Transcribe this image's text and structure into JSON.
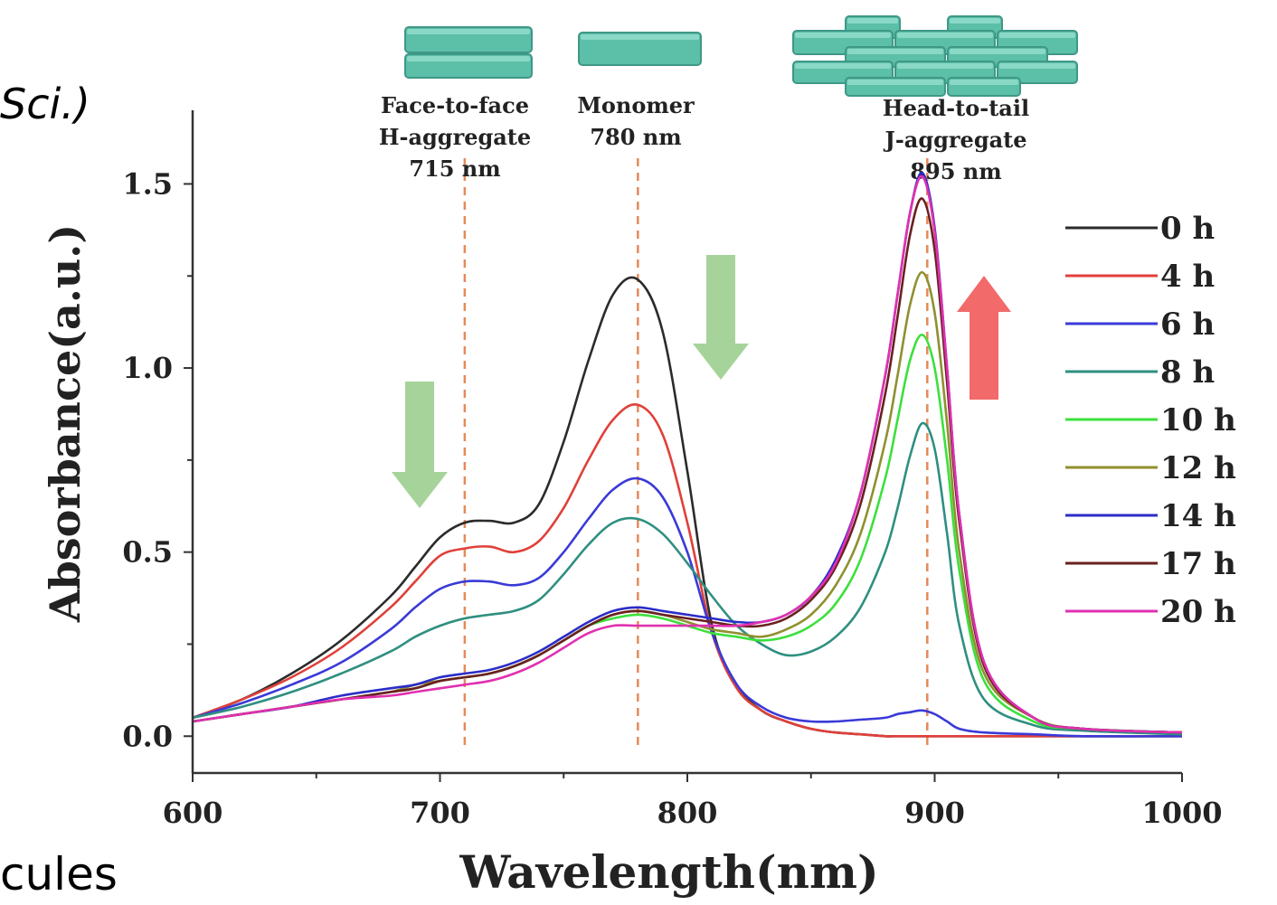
{
  "side_texts": {
    "top_left": "Sci.)",
    "bottom_left": "cules"
  },
  "colors": {
    "0 h": "#2b2b2b",
    "4 h": "#e0403a",
    "6 h": "#3a3ad8",
    "8 h": "#2f8f80",
    "10 h": "#3ce03c",
    "12 h": "#8f9030",
    "14 h": "#2c2cc8",
    "17 h": "#6a2020",
    "20 h": "#e030b0",
    "arrow_down": "#a6d39a",
    "arrow_up": "#f26a6a",
    "guide_line": "#e58a5a",
    "block_fill": "#5cbfa8"
  },
  "annotations": [
    {
      "lines": [
        "Face-to-face",
        "H-aggregate",
        "715 nm"
      ],
      "x": 710
    },
    {
      "lines": [
        "Monomer",
        "780 nm"
      ],
      "x": 780
    },
    {
      "lines": [
        "Head-to-tail",
        "J-aggregate",
        "895 nm"
      ],
      "x": 897
    }
  ],
  "chart_data": {
    "type": "line",
    "xlabel": "Wavelength(nm)",
    "ylabel": "Absorbance(a.u.)",
    "xlim": [
      600,
      1000
    ],
    "ylim": [
      -0.1,
      1.7
    ],
    "x_ticks": [
      "600",
      "700",
      "800",
      "900",
      "1000"
    ],
    "y_ticks": [
      "0.0",
      "0.5",
      "1.0",
      "1.5"
    ],
    "legend_position": "right",
    "x": [
      600,
      620,
      640,
      660,
      680,
      690,
      700,
      710,
      720,
      730,
      740,
      750,
      760,
      770,
      780,
      790,
      800,
      810,
      820,
      830,
      840,
      850,
      860,
      870,
      880,
      885,
      890,
      895,
      900,
      905,
      910,
      920,
      940,
      960,
      1000
    ],
    "series": [
      {
        "name": "0 h",
        "values": [
          0.05,
          0.1,
          0.17,
          0.26,
          0.38,
          0.46,
          0.54,
          0.58,
          0.585,
          0.58,
          0.63,
          0.8,
          1.02,
          1.2,
          1.24,
          1.1,
          0.72,
          0.3,
          0.14,
          0.07,
          0.04,
          0.02,
          0.01,
          0.005,
          0.0,
          0.0,
          0.0,
          0.0,
          0.0,
          0.0,
          0.0,
          0.0,
          0.0,
          0.0,
          0.0
        ]
      },
      {
        "name": "4 h",
        "values": [
          0.05,
          0.1,
          0.16,
          0.24,
          0.35,
          0.42,
          0.49,
          0.51,
          0.515,
          0.5,
          0.53,
          0.62,
          0.75,
          0.86,
          0.9,
          0.82,
          0.58,
          0.28,
          0.13,
          0.07,
          0.04,
          0.02,
          0.01,
          0.005,
          0.0,
          0.0,
          0.0,
          0.0,
          0.0,
          0.0,
          0.0,
          0.0,
          0.0,
          0.0,
          0.0
        ]
      },
      {
        "name": "6 h",
        "values": [
          0.05,
          0.09,
          0.14,
          0.2,
          0.29,
          0.35,
          0.4,
          0.42,
          0.42,
          0.41,
          0.43,
          0.5,
          0.59,
          0.67,
          0.7,
          0.65,
          0.5,
          0.28,
          0.14,
          0.08,
          0.05,
          0.04,
          0.04,
          0.045,
          0.05,
          0.06,
          0.065,
          0.07,
          0.06,
          0.04,
          0.02,
          0.01,
          0.005,
          0.0,
          0.0
        ]
      },
      {
        "name": "8 h",
        "values": [
          0.05,
          0.08,
          0.12,
          0.17,
          0.23,
          0.27,
          0.3,
          0.32,
          0.33,
          0.34,
          0.37,
          0.44,
          0.52,
          0.58,
          0.59,
          0.55,
          0.47,
          0.38,
          0.3,
          0.25,
          0.22,
          0.23,
          0.27,
          0.35,
          0.5,
          0.62,
          0.76,
          0.85,
          0.78,
          0.55,
          0.3,
          0.1,
          0.03,
          0.015,
          0.005
        ]
      },
      {
        "name": "10 h",
        "values": [
          0.04,
          0.06,
          0.08,
          0.1,
          0.12,
          0.13,
          0.15,
          0.16,
          0.17,
          0.19,
          0.22,
          0.26,
          0.3,
          0.32,
          0.33,
          0.32,
          0.3,
          0.28,
          0.27,
          0.26,
          0.27,
          0.3,
          0.36,
          0.48,
          0.7,
          0.86,
          1.02,
          1.09,
          1.0,
          0.75,
          0.45,
          0.15,
          0.04,
          0.02,
          0.01
        ]
      },
      {
        "name": "12 h",
        "values": [
          0.04,
          0.06,
          0.08,
          0.1,
          0.12,
          0.14,
          0.15,
          0.16,
          0.17,
          0.19,
          0.22,
          0.26,
          0.3,
          0.33,
          0.34,
          0.33,
          0.31,
          0.29,
          0.28,
          0.27,
          0.29,
          0.33,
          0.41,
          0.55,
          0.8,
          0.98,
          1.17,
          1.26,
          1.15,
          0.85,
          0.5,
          0.17,
          0.05,
          0.02,
          0.01
        ]
      },
      {
        "name": "14 h",
        "values": [
          0.04,
          0.06,
          0.08,
          0.11,
          0.13,
          0.14,
          0.16,
          0.17,
          0.18,
          0.2,
          0.23,
          0.27,
          0.31,
          0.34,
          0.35,
          0.34,
          0.33,
          0.32,
          0.31,
          0.31,
          0.33,
          0.38,
          0.48,
          0.66,
          0.98,
          1.2,
          1.42,
          1.53,
          1.38,
          1.0,
          0.6,
          0.2,
          0.05,
          0.02,
          0.01
        ]
      },
      {
        "name": "17 h",
        "values": [
          0.04,
          0.06,
          0.08,
          0.1,
          0.12,
          0.13,
          0.15,
          0.16,
          0.17,
          0.19,
          0.22,
          0.26,
          0.3,
          0.33,
          0.34,
          0.33,
          0.32,
          0.31,
          0.3,
          0.3,
          0.32,
          0.37,
          0.46,
          0.63,
          0.93,
          1.14,
          1.36,
          1.46,
          1.32,
          0.96,
          0.58,
          0.19,
          0.05,
          0.02,
          0.01
        ]
      },
      {
        "name": "20 h",
        "values": [
          0.04,
          0.06,
          0.08,
          0.1,
          0.11,
          0.12,
          0.13,
          0.14,
          0.15,
          0.17,
          0.2,
          0.24,
          0.28,
          0.3,
          0.3,
          0.3,
          0.3,
          0.3,
          0.3,
          0.31,
          0.33,
          0.38,
          0.47,
          0.66,
          0.98,
          1.2,
          1.42,
          1.52,
          1.37,
          1.0,
          0.6,
          0.2,
          0.05,
          0.02,
          0.01
        ]
      }
    ]
  }
}
